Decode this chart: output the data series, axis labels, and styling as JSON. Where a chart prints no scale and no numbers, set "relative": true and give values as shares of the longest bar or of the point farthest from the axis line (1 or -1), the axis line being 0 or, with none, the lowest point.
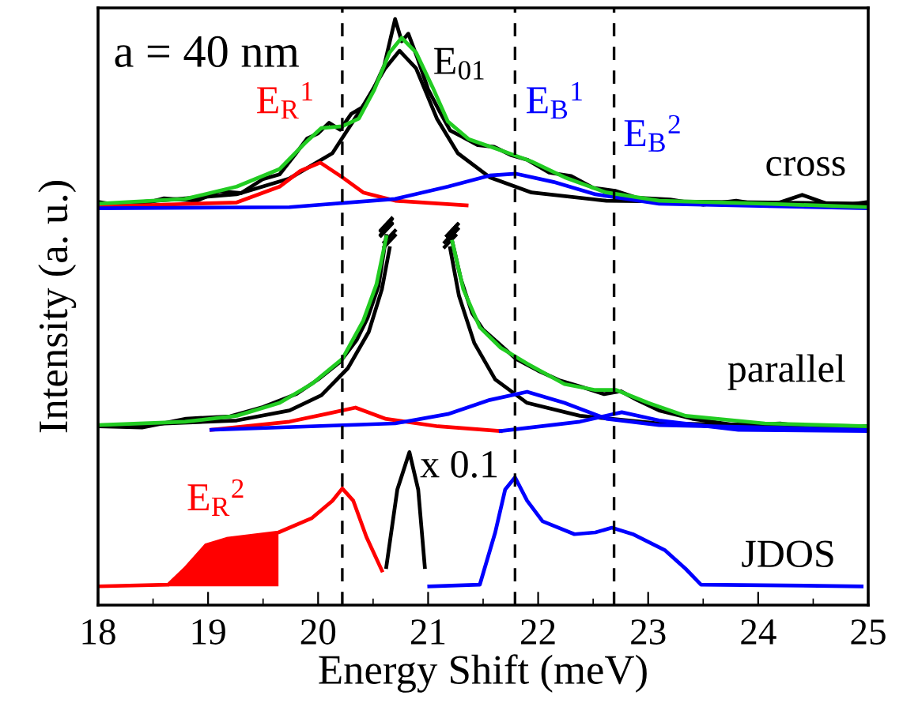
{
  "chart_data": {
    "type": "line",
    "relative": true,
    "xlabel": "Energy Shift (meV)",
    "ylabel": "Intensity (a. u.)",
    "xlim": [
      18,
      25
    ],
    "xticks": [
      18,
      19,
      20,
      21,
      22,
      23,
      24,
      25
    ],
    "legend": false,
    "grid": false,
    "marker": "none",
    "line_style": "solid",
    "series": [
      {
        "color": "#000000",
        "x": [
          18.0,
          18.3,
          18.6,
          18.9,
          19.1,
          19.3,
          19.5,
          19.65,
          19.8,
          19.9,
          20.0,
          20.1,
          20.2,
          20.3,
          20.4,
          20.5,
          20.6,
          20.65,
          20.7,
          20.76,
          20.82,
          20.9,
          21.0,
          21.1,
          21.2,
          21.3,
          21.45,
          21.6,
          21.75,
          21.9,
          22.1,
          22.3,
          22.5,
          22.7,
          22.9,
          23.2,
          23.5,
          23.8,
          24.1,
          24.4,
          24.7,
          25.0
        ],
        "values": [
          0.688,
          0.679,
          0.694,
          0.69,
          0.706,
          0.703,
          0.727,
          0.735,
          0.771,
          0.796,
          0.805,
          0.823,
          0.811,
          0.838,
          0.849,
          0.879,
          0.92,
          0.96,
          1.0,
          0.962,
          0.975,
          0.935,
          0.88,
          0.844,
          0.81,
          0.8,
          0.785,
          0.782,
          0.768,
          0.76,
          0.738,
          0.732,
          0.712,
          0.707,
          0.695,
          0.692,
          0.683,
          0.69,
          0.681,
          0.7,
          0.68,
          0.688
        ]
      },
      {
        "color": "#000000",
        "x": [
          18.0,
          19.26,
          19.74,
          20.13,
          20.41,
          20.61,
          20.74,
          20.89,
          21.08,
          21.27,
          21.56,
          21.94,
          22.62,
          25.0
        ],
        "values": [
          0.682,
          0.701,
          0.728,
          0.771,
          0.852,
          0.916,
          0.946,
          0.916,
          0.83,
          0.771,
          0.73,
          0.704,
          0.69,
          0.685
        ]
      },
      {
        "color": "#ff0000",
        "x": [
          18.0,
          19.26,
          19.65,
          19.84,
          20.02,
          20.22,
          20.41,
          20.7,
          21.35
        ],
        "values": [
          0.68,
          0.687,
          0.714,
          0.741,
          0.755,
          0.73,
          0.704,
          0.69,
          0.682
        ]
      },
      {
        "color": "#0000ff",
        "x": [
          18.0,
          19.74,
          20.7,
          21.18,
          21.56,
          21.8,
          22.14,
          22.52,
          23.1,
          25.0
        ],
        "values": [
          0.677,
          0.679,
          0.693,
          0.714,
          0.733,
          0.736,
          0.722,
          0.701,
          0.685,
          0.677
        ]
      },
      {
        "color": "#22cc22",
        "x": [
          18.0,
          18.79,
          19.26,
          19.65,
          19.89,
          20.03,
          20.22,
          20.37,
          20.51,
          20.65,
          20.76,
          20.89,
          21.04,
          21.18,
          21.37,
          21.66,
          21.94,
          22.24,
          22.62,
          23.1,
          24.06,
          25.0
        ],
        "values": [
          0.685,
          0.693,
          0.714,
          0.744,
          0.79,
          0.814,
          0.817,
          0.83,
          0.879,
          0.943,
          0.968,
          0.943,
          0.884,
          0.825,
          0.795,
          0.776,
          0.757,
          0.73,
          0.704,
          0.69,
          0.685,
          0.679
        ]
      },
      {
        "color": "#000000",
        "x": [
          18.0,
          18.4,
          18.8,
          19.2,
          19.5,
          19.8,
          20.0,
          20.2,
          20.35,
          20.45,
          20.55,
          20.62,
          20.9,
          21.22,
          21.3,
          21.4,
          21.5,
          21.65,
          21.8,
          22.0,
          22.2,
          22.4,
          22.6,
          22.75,
          22.9,
          23.1,
          23.4,
          23.8,
          24.2,
          24.6,
          25.0
        ],
        "values": [
          0.305,
          0.303,
          0.318,
          0.322,
          0.338,
          0.36,
          0.385,
          0.415,
          0.452,
          0.49,
          0.545,
          0.63,
          null,
          0.62,
          0.555,
          0.498,
          0.47,
          0.445,
          0.42,
          0.4,
          0.383,
          0.372,
          0.36,
          0.365,
          0.35,
          0.332,
          0.318,
          0.307,
          0.31,
          0.3,
          0.303
        ]
      },
      {
        "color": "#000000",
        "x": [
          18.0,
          19.26,
          19.74,
          20.03,
          20.27,
          20.46,
          20.58,
          20.65,
          20.9,
          21.2,
          21.28,
          21.42,
          21.61,
          21.9,
          22.38,
          23.1,
          25.0
        ],
        "values": [
          0.305,
          0.315,
          0.332,
          0.358,
          0.404,
          0.466,
          0.539,
          0.609,
          null,
          0.609,
          0.528,
          0.447,
          0.385,
          0.345,
          0.323,
          0.31,
          0.305
        ]
      },
      {
        "color": "#ff0000",
        "x": [
          19.03,
          19.74,
          20.07,
          20.34,
          20.61,
          21.09,
          21.66
        ],
        "values": [
          0.299,
          0.313,
          0.326,
          0.337,
          0.318,
          0.305,
          0.297
        ]
      },
      {
        "color": "#0000ff",
        "x": [
          19.03,
          20.7,
          21.18,
          21.56,
          21.9,
          22.24,
          22.62,
          23.1,
          25.0
        ],
        "values": [
          0.299,
          0.31,
          0.326,
          0.35,
          0.364,
          0.345,
          0.318,
          0.307,
          0.299
        ]
      },
      {
        "color": "#0000ff",
        "x": [
          21.66,
          22.38,
          22.76,
          23.1,
          23.82,
          25.0
        ],
        "values": [
          0.297,
          0.313,
          0.329,
          0.315,
          0.299,
          0.297
        ]
      },
      {
        "color": "#22cc22",
        "x": [
          18.0,
          18.79,
          19.26,
          19.65,
          19.94,
          20.22,
          20.41,
          20.53,
          20.62,
          20.9,
          21.22,
          21.32,
          21.47,
          21.66,
          21.9,
          22.24,
          22.52,
          22.71,
          23.0,
          23.34,
          24.06,
          25.0
        ],
        "values": [
          0.307,
          0.313,
          0.323,
          0.345,
          0.377,
          0.42,
          0.485,
          0.547,
          0.628,
          null,
          0.62,
          0.539,
          0.474,
          0.439,
          0.412,
          0.377,
          0.367,
          0.367,
          0.345,
          0.323,
          0.31,
          0.305
        ]
      },
      {
        "type": "area",
        "color": "#ff0000",
        "x": [
          18.64,
          18.79,
          18.98,
          19.17,
          19.64
        ],
        "values": [
          0.035,
          0.062,
          0.102,
          0.113,
          0.124
        ]
      },
      {
        "color": "#ff0000",
        "x": [
          18.0,
          18.64,
          18.79,
          18.98,
          19.17,
          19.64,
          19.94,
          20.13,
          20.22,
          20.32,
          20.44,
          20.58
        ],
        "values": [
          0.032,
          0.035,
          0.062,
          0.102,
          0.113,
          0.124,
          0.148,
          0.178,
          0.199,
          0.178,
          0.116,
          0.059
        ]
      },
      {
        "color": "#000000",
        "x": [
          20.62,
          20.72,
          20.83,
          20.91,
          20.97
        ],
        "values": [
          0.065,
          0.197,
          0.261,
          0.197,
          0.065
        ]
      },
      {
        "color": "#0000ff",
        "x": [
          21.01,
          21.47,
          21.61,
          21.7,
          21.79,
          21.9,
          22.04,
          22.33,
          22.52,
          22.67,
          22.86,
          23.15,
          23.34,
          23.48,
          24.94
        ],
        "values": [
          0.032,
          0.035,
          0.124,
          0.197,
          0.218,
          0.178,
          0.143,
          0.121,
          0.124,
          0.132,
          0.121,
          0.094,
          0.062,
          0.035,
          0.032
        ]
      }
    ],
    "ref_lines": [
      {
        "axis": "x",
        "value": 20.22,
        "color": "#000000",
        "line_style": "dashed"
      },
      {
        "axis": "x",
        "value": 21.79,
        "color": "#000000",
        "line_style": "dashed"
      },
      {
        "axis": "x",
        "value": 22.69,
        "color": "#000000",
        "line_style": "dashed"
      }
    ],
    "annotations": [
      "a = 40 nm",
      "E$_{R}$$^{1}$",
      "E$_{01}$",
      "E$_{B}$$^{1}$",
      "E$_{B}$$^{2}$",
      "cross",
      "parallel",
      "x 0.1",
      "E$_{R}$$^{2}$",
      "JDOS"
    ]
  }
}
